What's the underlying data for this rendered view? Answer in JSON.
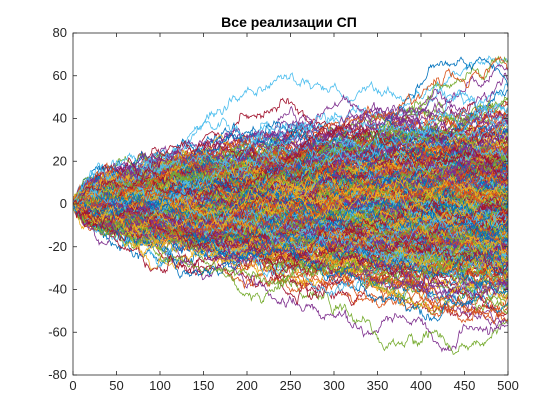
{
  "chart_data": {
    "type": "line",
    "title": "Все реализации СП",
    "xlabel": "",
    "ylabel": "",
    "xlim": [
      0,
      500
    ],
    "ylim": [
      -80,
      80
    ],
    "x_ticks": [
      0,
      50,
      100,
      150,
      200,
      250,
      300,
      350,
      400,
      450,
      500
    ],
    "y_ticks": [
      -80,
      -60,
      -40,
      -20,
      0,
      20,
      40,
      60,
      80
    ],
    "grid": false,
    "legend": "none",
    "series_description": {
      "kind": "random_walk_realizations",
      "n_realizations": 500,
      "n_steps": 500,
      "start_value": 0,
      "step_std": 1.0,
      "approx_final_spread": [
        -70,
        75
      ],
      "observed_max": 78,
      "observed_max_at_x": 455,
      "observed_min": -78,
      "observed_min_at_x": 330
    },
    "colors": [
      "#0072BD",
      "#D95319",
      "#EDB120",
      "#7E2F8E",
      "#77AC30",
      "#4DBEEE",
      "#A2142F"
    ]
  }
}
